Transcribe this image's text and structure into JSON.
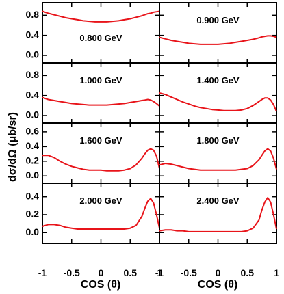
{
  "chart_data": {
    "type": "line",
    "xlabel": "COS (θ)",
    "ylabel": "dσ/dΩ (μb/sr)",
    "xlim": [
      -1,
      1
    ],
    "x_ticks": [
      "-1",
      "-0.5",
      "0",
      "0.5",
      "1"
    ],
    "x_tick_values": [
      -1,
      -0.5,
      0,
      0.5,
      1
    ],
    "line_color": "#e8141a",
    "grid": false,
    "x": [
      -1.0,
      -0.9,
      -0.8,
      -0.7,
      -0.6,
      -0.5,
      -0.4,
      -0.3,
      -0.2,
      -0.1,
      0.0,
      0.1,
      0.2,
      0.3,
      0.4,
      0.5,
      0.6,
      0.7,
      0.75,
      0.8,
      0.85,
      0.9,
      0.95,
      1.0
    ],
    "panels": [
      {
        "label": "0.800 GeV",
        "y_ticks": [
          "0.0",
          "0.4",
          "0.8"
        ],
        "y_tick_values": [
          0.0,
          0.4,
          0.8
        ],
        "ylim": [
          -0.15,
          1.05
        ],
        "values": [
          0.88,
          0.84,
          0.81,
          0.78,
          0.75,
          0.73,
          0.71,
          0.69,
          0.68,
          0.67,
          0.67,
          0.67,
          0.68,
          0.69,
          0.71,
          0.73,
          0.76,
          0.79,
          0.81,
          0.83,
          0.84,
          0.86,
          0.87,
          0.88
        ]
      },
      {
        "label": "0.900 GeV",
        "y_ticks": [
          "0.0",
          "0.4",
          "0.8"
        ],
        "y_tick_values": [
          0.0,
          0.4,
          0.8
        ],
        "ylim": [
          -0.15,
          1.05
        ],
        "values": [
          0.36,
          0.33,
          0.3,
          0.28,
          0.26,
          0.24,
          0.23,
          0.22,
          0.22,
          0.22,
          0.22,
          0.23,
          0.24,
          0.26,
          0.28,
          0.3,
          0.32,
          0.35,
          0.37,
          0.38,
          0.39,
          0.39,
          0.38,
          0.36
        ]
      },
      {
        "label": "1.000 GeV",
        "y_ticks": [
          "0.0",
          "0.4",
          "0.8"
        ],
        "y_tick_values": [
          0.0,
          0.4,
          0.8
        ],
        "ylim": [
          -0.15,
          1.05
        ],
        "values": [
          0.36,
          0.32,
          0.3,
          0.28,
          0.26,
          0.24,
          0.23,
          0.22,
          0.21,
          0.21,
          0.21,
          0.21,
          0.22,
          0.23,
          0.24,
          0.26,
          0.28,
          0.3,
          0.31,
          0.32,
          0.31,
          0.28,
          0.24,
          0.19
        ]
      },
      {
        "label": "1.400 GeV",
        "y_ticks": [
          "0.0",
          "0.4",
          "0.8"
        ],
        "y_tick_values": [
          0.0,
          0.4,
          0.8
        ],
        "ylim": [
          -0.15,
          1.05
        ],
        "values": [
          0.45,
          0.42,
          0.37,
          0.32,
          0.27,
          0.23,
          0.19,
          0.16,
          0.14,
          0.12,
          0.11,
          0.1,
          0.1,
          0.1,
          0.11,
          0.14,
          0.2,
          0.28,
          0.32,
          0.35,
          0.35,
          0.31,
          0.22,
          0.08
        ]
      },
      {
        "label": "1.600 GeV",
        "y_ticks": [
          "0.0",
          "0.2",
          "0.4",
          "0.6"
        ],
        "y_tick_values": [
          0.0,
          0.2,
          0.4,
          0.6
        ],
        "ylim": [
          -0.1,
          0.72
        ],
        "values": [
          0.28,
          0.28,
          0.25,
          0.2,
          0.16,
          0.13,
          0.11,
          0.09,
          0.08,
          0.08,
          0.08,
          0.07,
          0.07,
          0.07,
          0.08,
          0.1,
          0.15,
          0.24,
          0.3,
          0.35,
          0.37,
          0.35,
          0.27,
          0.1
        ]
      },
      {
        "label": "1.800 GeV",
        "y_ticks": [
          "0.0",
          "0.2",
          "0.4",
          "0.6"
        ],
        "y_tick_values": [
          0.0,
          0.2,
          0.4,
          0.6
        ],
        "ylim": [
          -0.1,
          0.72
        ],
        "values": [
          0.15,
          0.17,
          0.16,
          0.14,
          0.12,
          0.1,
          0.09,
          0.08,
          0.08,
          0.08,
          0.08,
          0.08,
          0.08,
          0.08,
          0.09,
          0.1,
          0.14,
          0.22,
          0.28,
          0.34,
          0.37,
          0.34,
          0.24,
          0.09
        ]
      },
      {
        "label": "2.000 GeV",
        "y_ticks": [
          "0.0",
          "0.2",
          "0.4"
        ],
        "y_tick_values": [
          0.0,
          0.2,
          0.4
        ],
        "ylim": [
          -0.12,
          0.55
        ],
        "values": [
          0.07,
          0.09,
          0.09,
          0.08,
          0.06,
          0.05,
          0.04,
          0.04,
          0.04,
          0.04,
          0.04,
          0.04,
          0.04,
          0.04,
          0.04,
          0.05,
          0.08,
          0.18,
          0.27,
          0.35,
          0.38,
          0.33,
          0.2,
          0.05
        ]
      },
      {
        "label": "2.400 GeV",
        "y_ticks": [
          "0.0",
          "0.2",
          "0.4"
        ],
        "y_tick_values": [
          0.0,
          0.2,
          0.4
        ],
        "ylim": [
          -0.12,
          0.55
        ],
        "values": [
          0.02,
          0.03,
          0.03,
          0.02,
          0.02,
          0.01,
          0.01,
          0.01,
          0.01,
          0.01,
          0.01,
          0.01,
          0.01,
          0.01,
          0.01,
          0.02,
          0.05,
          0.14,
          0.25,
          0.34,
          0.39,
          0.34,
          0.2,
          0.04
        ]
      }
    ]
  }
}
